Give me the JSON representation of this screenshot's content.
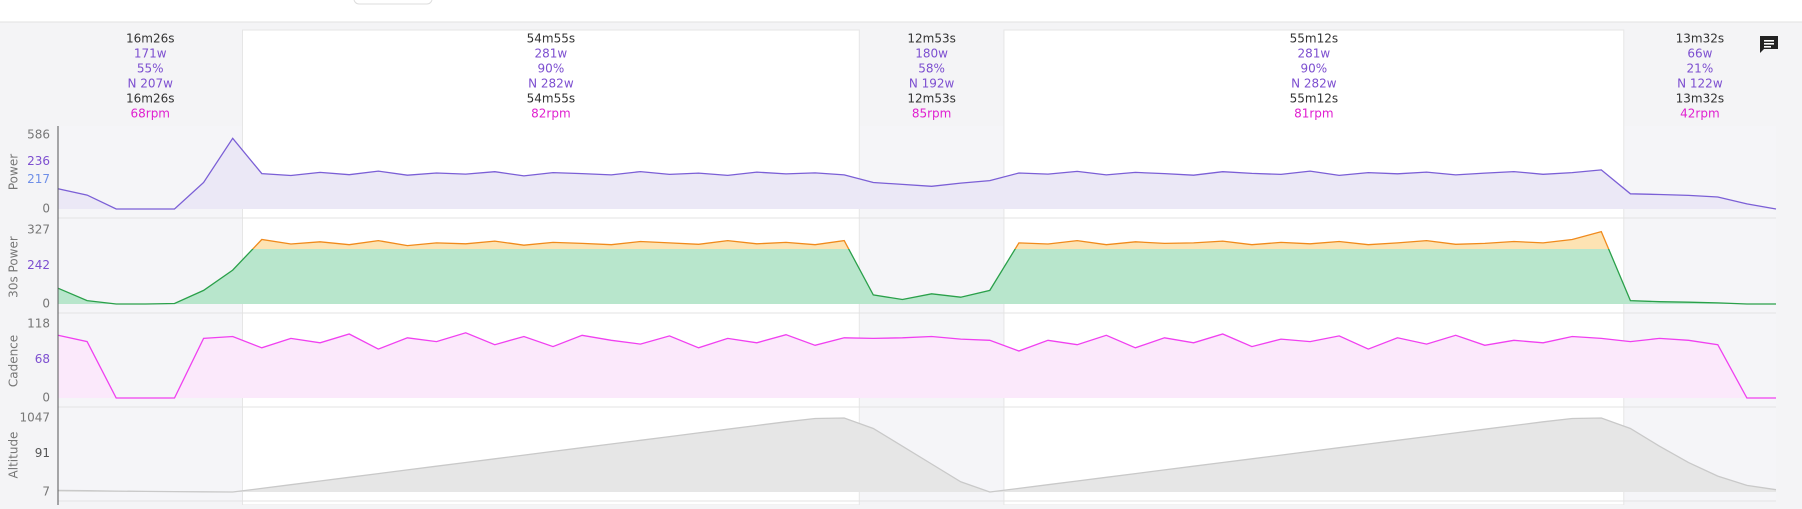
{
  "intervals": [
    {
      "duration": "16m26s",
      "power": "171w",
      "percent": "55%",
      "np": "N 207w",
      "time": "16m26s",
      "cadence": "68rpm"
    },
    {
      "duration": "54m55s",
      "power": "281w",
      "percent": "90%",
      "np": "N 282w",
      "time": "54m55s",
      "cadence": "82rpm"
    },
    {
      "duration": "12m53s",
      "power": "180w",
      "percent": "58%",
      "np": "N 192w",
      "time": "12m53s",
      "cadence": "85rpm"
    },
    {
      "duration": "55m12s",
      "power": "281w",
      "percent": "90%",
      "np": "N 282w",
      "time": "55m12s",
      "cadence": "81rpm"
    },
    {
      "duration": "13m32s",
      "power": "66w",
      "percent": "21%",
      "np": "N 122w",
      "time": "13m32s",
      "cadence": "42rpm"
    }
  ],
  "tracks": [
    {
      "label": "Power",
      "ticks": [
        586,
        236,
        217,
        0
      ],
      "color": "#7b5fd6",
      "values": [
        160,
        110,
        0,
        0,
        0,
        210,
        560,
        280,
        265,
        290,
        272,
        300,
        268,
        285,
        276,
        295,
        262,
        288,
        280,
        270,
        296,
        274,
        284,
        266,
        292,
        278,
        286,
        270,
        210,
        195,
        180,
        205,
        225,
        285,
        276,
        298,
        270,
        290,
        280,
        268,
        295,
        282,
        274,
        300,
        266,
        288,
        279,
        292,
        270,
        284,
        296,
        275,
        288,
        310,
        120,
        115,
        108,
        95,
        40,
        0
      ]
    },
    {
      "label": "30s Power",
      "ticks": [
        327,
        242,
        0
      ],
      "color": "#f08a1c",
      "values": [
        70,
        15,
        0,
        0,
        2,
        60,
        150,
        285,
        265,
        275,
        262,
        280,
        258,
        270,
        266,
        278,
        260,
        272,
        268,
        262,
        276,
        270,
        264,
        280,
        266,
        272,
        262,
        280,
        40,
        20,
        45,
        30,
        60,
        270,
        265,
        280,
        262,
        275,
        268,
        270,
        278,
        262,
        272,
        266,
        276,
        262,
        270,
        280,
        264,
        268,
        276,
        270,
        285,
        320,
        15,
        10,
        8,
        5,
        0,
        0
      ]
    },
    {
      "label": "Cadence",
      "ticks": [
        118,
        68,
        0
      ],
      "color": "#f040f0",
      "values": [
        100,
        90,
        0,
        0,
        0,
        95,
        98,
        80,
        95,
        88,
        102,
        78,
        96,
        90,
        104,
        85,
        98,
        82,
        100,
        92,
        86,
        99,
        80,
        95,
        88,
        101,
        84,
        96,
        95,
        96,
        98,
        94,
        92,
        75,
        92,
        85,
        100,
        80,
        96,
        88,
        102,
        82,
        94,
        90,
        99,
        78,
        96,
        86,
        100,
        84,
        92,
        88,
        98,
        95,
        90,
        95,
        92,
        85,
        0,
        0
      ]
    },
    {
      "label": "Altitude",
      "ticks": [
        1047,
        91,
        7
      ],
      "color": "#c9c9c9",
      "values": [
        30,
        25,
        20,
        15,
        12,
        10,
        7,
        57,
        109,
        161,
        213,
        265,
        317,
        369,
        421,
        473,
        525,
        577,
        629,
        681,
        733,
        785,
        837,
        889,
        941,
        993,
        1040,
        1047,
        900,
        650,
        400,
        150,
        7,
        57,
        109,
        161,
        213,
        265,
        317,
        369,
        421,
        473,
        525,
        577,
        629,
        681,
        733,
        785,
        837,
        889,
        941,
        993,
        1040,
        1047,
        900,
        650,
        420,
        230,
        100,
        40
      ]
    }
  ]
}
